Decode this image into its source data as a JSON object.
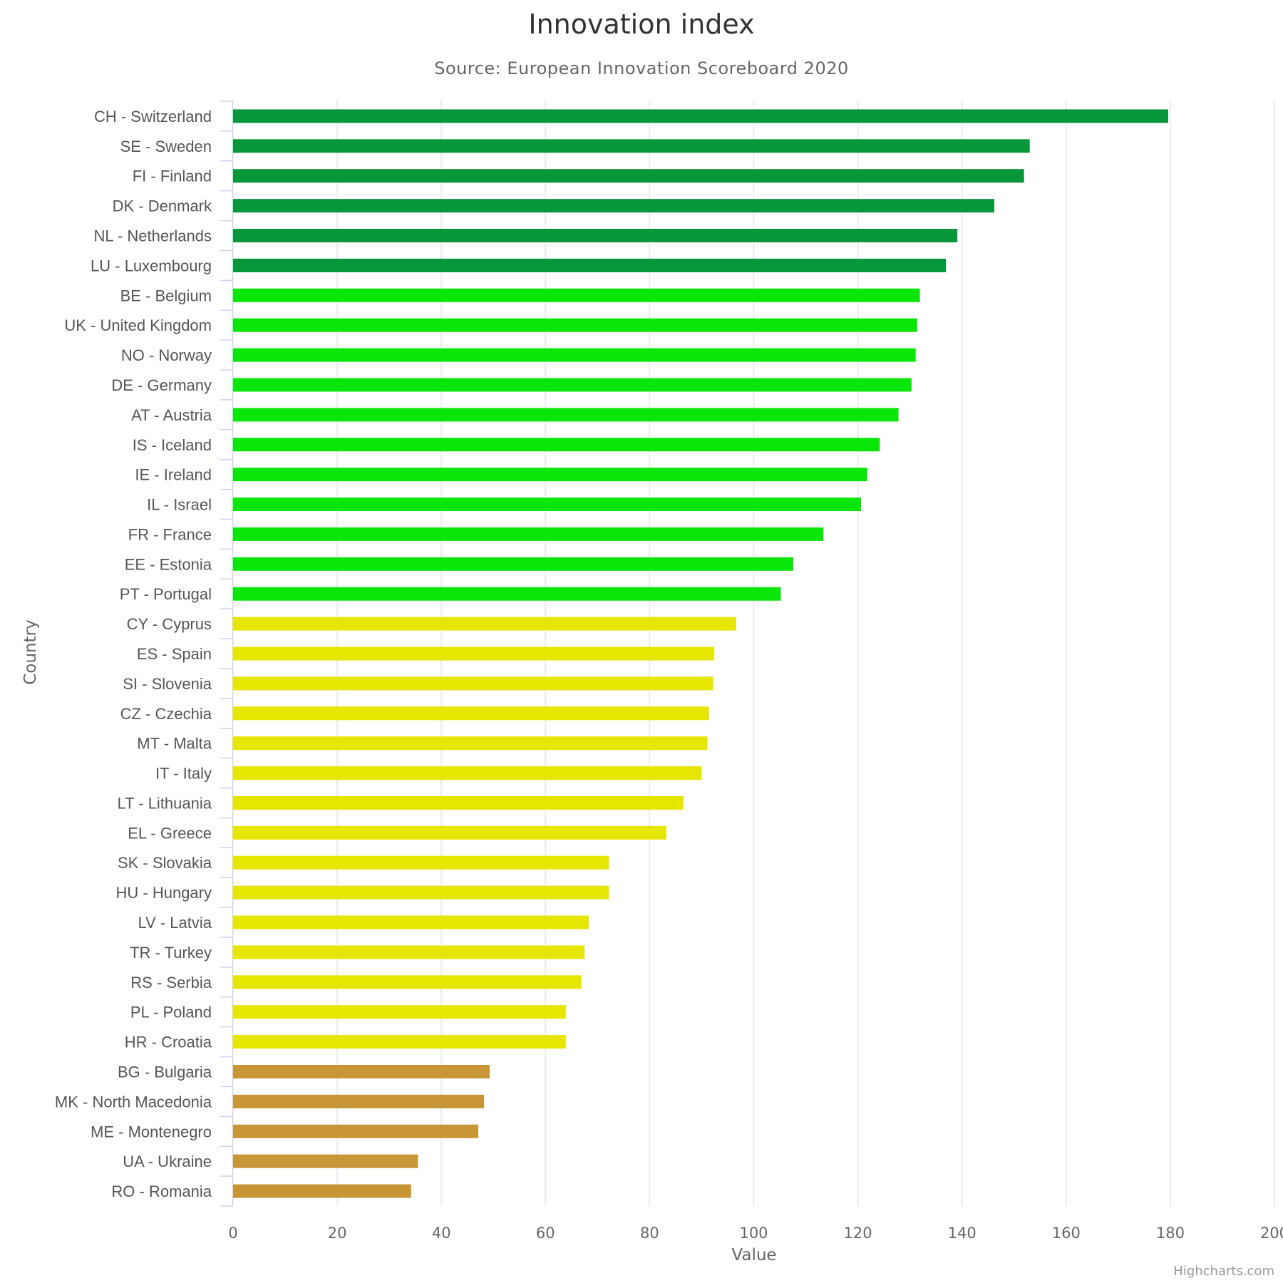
{
  "title": "Innovation index",
  "subtitle": "Source: European Innovation Scoreboard 2020",
  "credits": "Highcharts.com",
  "chart_data": {
    "type": "bar",
    "orientation": "horizontal",
    "title": "Innovation index",
    "subtitle": "Source: European Innovation Scoreboard 2020",
    "xlabel": "Country",
    "ylabel": "Value",
    "xlim": [
      0,
      200
    ],
    "ticks": [
      0,
      20,
      40,
      60,
      80,
      100,
      120,
      140,
      160,
      180,
      200
    ],
    "grid": true,
    "legend": "none",
    "colors": {
      "dark_green": "#07963a",
      "green": "#0ae60a",
      "yellow": "#e6e600",
      "brown": "#c89637"
    },
    "categories": [
      "CH - Switzerland",
      "SE - Sweden",
      "FI - Finland",
      "DK - Denmark",
      "NL - Netherlands",
      "LU - Luxembourg",
      "BE - Belgium",
      "UK - United Kingdom",
      "NO - Norway",
      "DE - Germany",
      "AT - Austria",
      "IS - Iceland",
      "IE - Ireland",
      "IL - Israel",
      "FR - France",
      "EE - Estonia",
      "PT - Portugal",
      "CY - Cyprus",
      "ES - Spain",
      "SI - Slovenia",
      "CZ - Czechia",
      "MT - Malta",
      "IT - Italy",
      "LT - Lithuania",
      "EL - Greece",
      "SK - Slovakia",
      "HU - Hungary",
      "LV - Latvia",
      "TR - Turkey",
      "RS - Serbia",
      "PL - Poland",
      "HR - Croatia",
      "BG - Bulgaria",
      "MK - North Macedonia",
      "ME - Montenegro",
      "UA - Ukraine",
      "RO - Romania"
    ],
    "values": [
      179.6,
      153.0,
      151.9,
      146.2,
      139.1,
      136.9,
      131.9,
      131.4,
      131.1,
      130.3,
      127.8,
      124.2,
      121.8,
      120.6,
      113.4,
      107.6,
      105.2,
      96.6,
      92.4,
      92.2,
      91.4,
      91.1,
      90.0,
      86.5,
      83.2,
      72.2,
      72.2,
      68.3,
      67.5,
      66.9,
      63.9,
      63.9,
      49.3,
      48.2,
      47.1,
      35.5,
      34.2
    ],
    "bar_colors": [
      "#07963a",
      "#07963a",
      "#07963a",
      "#07963a",
      "#07963a",
      "#07963a",
      "#0ae60a",
      "#0ae60a",
      "#0ae60a",
      "#0ae60a",
      "#0ae60a",
      "#0ae60a",
      "#0ae60a",
      "#0ae60a",
      "#0ae60a",
      "#0ae60a",
      "#0ae60a",
      "#e6e600",
      "#e6e600",
      "#e6e600",
      "#e6e600",
      "#e6e600",
      "#e6e600",
      "#e6e600",
      "#e6e600",
      "#e6e600",
      "#e6e600",
      "#e6e600",
      "#e6e600",
      "#e6e600",
      "#e6e600",
      "#e6e600",
      "#c89637",
      "#c89637",
      "#c89637",
      "#c89637",
      "#c89637"
    ]
  }
}
